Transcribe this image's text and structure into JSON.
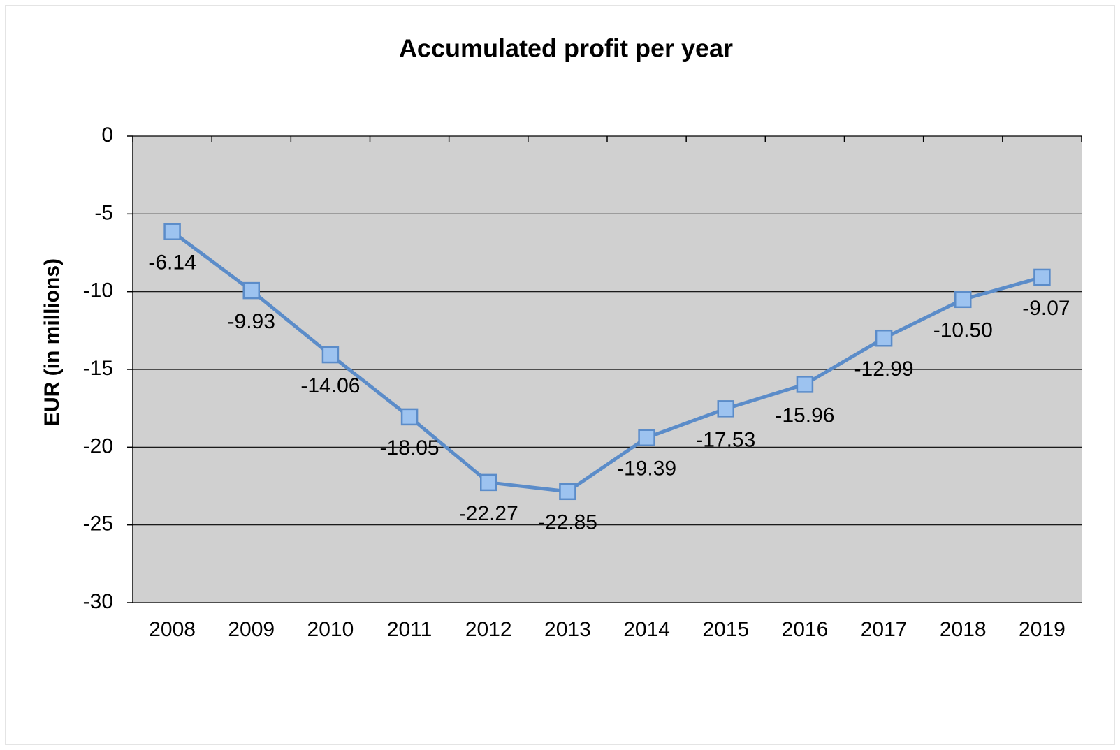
{
  "chart_data": {
    "type": "line",
    "title": "Accumulated profit per year",
    "y_label": "EUR (in millions)",
    "categories": [
      "2008",
      "2009",
      "2010",
      "2011",
      "2012",
      "2013",
      "2014",
      "2015",
      "2016",
      "2017",
      "2018",
      "2019"
    ],
    "values": [
      -6.14,
      -9.93,
      -14.06,
      -18.05,
      -22.27,
      -22.85,
      -19.39,
      -17.53,
      -15.96,
      -12.99,
      -10.5,
      -9.07
    ],
    "value_labels": [
      "-6.14",
      "-9.93",
      "-14.06",
      "-18.05",
      "-22.27",
      "-22.85",
      "-19.39",
      "-17.53",
      "-15.96",
      "-12.99",
      "-10.50",
      "-9.07"
    ],
    "color": "#5b8cc9",
    "marker_color": "#9dc3f0",
    "ylim": [
      -30,
      0
    ],
    "yticks": [
      0,
      -5,
      -10,
      -15,
      -20,
      -25,
      -30
    ],
    "grid": true
  }
}
